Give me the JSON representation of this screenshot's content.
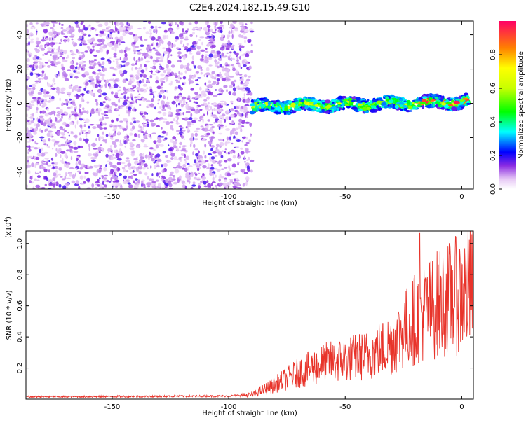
{
  "title": "C2E4.2024.182.15.49.G10",
  "chart_data": [
    {
      "type": "heatmap",
      "xlabel": "Height of straight line (km)",
      "ylabel": "Frequency (Hz)",
      "xlim": [
        -187,
        5
      ],
      "ylim": [
        -50,
        48
      ],
      "xticks": [
        -150,
        -100,
        -50,
        0
      ],
      "yticks": [
        -40,
        -20,
        0,
        20,
        40
      ],
      "grid": false,
      "colorbar": {
        "label": "Normalized spectral amplitude",
        "range": [
          0,
          1
        ],
        "ticks": [
          0.0,
          0.2,
          0.4,
          0.6,
          0.8
        ]
      },
      "features": {
        "noise_region_x": [
          -187,
          -90
        ],
        "signal_track": {
          "x_start": -90,
          "x_end": 3,
          "freq_start": -2,
          "freq_end": 1,
          "peak_amplitude": 1.0
        }
      }
    },
    {
      "type": "line",
      "xlabel": "Height of straight line (km)",
      "ylabel": "SNR (10 * v/v)",
      "y_multiplier": "(x10",
      "y_multiplier_exp": "4",
      "xlim": [
        -187,
        5
      ],
      "ylim": [
        0,
        1.08
      ],
      "xticks": [
        -150,
        -100,
        -50,
        0
      ],
      "yticks": [
        0.2,
        0.4,
        0.6,
        0.8,
        1.0
      ],
      "grid": false,
      "series": [
        {
          "color": "#e8332a",
          "profile_x": [
            -187,
            -100,
            -90,
            -80,
            -70,
            -60,
            -50,
            -40,
            -30,
            -20,
            -10,
            0,
            5
          ],
          "profile_y": [
            0.015,
            0.02,
            0.03,
            0.1,
            0.18,
            0.24,
            0.27,
            0.3,
            0.38,
            0.55,
            0.65,
            0.72,
            0.75
          ],
          "peak_x": -18,
          "peak_y": 1.07
        }
      ]
    }
  ]
}
